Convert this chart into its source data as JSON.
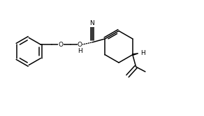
{
  "bg": "#ffffff",
  "lc": "#000000",
  "lw": 1.1,
  "fs": 6.5,
  "figsize": [
    2.92,
    1.67
  ],
  "dpi": 100,
  "xlim": [
    0,
    9.2
  ],
  "ylim": [
    0,
    5.2
  ]
}
